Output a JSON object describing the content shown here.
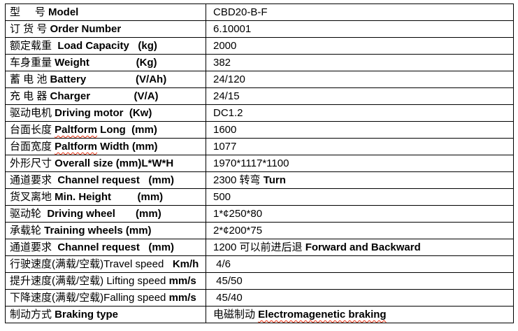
{
  "colors": {
    "border": "#000000",
    "text": "#000000",
    "background": "#ffffff",
    "spellcheck_squiggle": "#e82c0c"
  },
  "table": {
    "rows": [
      {
        "left": [
          {
            "t": "型     号 "
          },
          {
            "t": "Model",
            "b": true
          }
        ],
        "right": [
          {
            "t": "CBD20-B-F"
          }
        ]
      },
      {
        "left": [
          {
            "t": "订 货 号 "
          },
          {
            "t": "Order Number",
            "b": true
          }
        ],
        "right": [
          {
            "t": "6.10001"
          }
        ]
      },
      {
        "left": [
          {
            "t": "额定载重  "
          },
          {
            "t": "Load Capacity",
            "b": true
          },
          {
            "t": "   (kg)",
            "b": true
          }
        ],
        "right": [
          {
            "t": "2000"
          }
        ]
      },
      {
        "left": [
          {
            "t": "车身重量 "
          },
          {
            "t": "Weight",
            "b": true
          },
          {
            "t": "                (Kg)",
            "b": true
          }
        ],
        "right": [
          {
            "t": "382"
          }
        ]
      },
      {
        "left": [
          {
            "t": "蓄 电 池 "
          },
          {
            "t": "Battery",
            "b": true
          },
          {
            "t": "                 (V/Ah)",
            "b": true
          }
        ],
        "right": [
          {
            "t": "24/120"
          }
        ]
      },
      {
        "left": [
          {
            "t": "充 电 器 "
          },
          {
            "t": "Charger",
            "b": true
          },
          {
            "t": "               (V/A)",
            "b": true
          }
        ],
        "right": [
          {
            "t": "24/15"
          }
        ]
      },
      {
        "left": [
          {
            "t": "驱动电机 "
          },
          {
            "t": "Driving motor",
            "b": true
          },
          {
            "t": "  (Kw)",
            "b": true
          }
        ],
        "right": [
          {
            "t": "DC1.2"
          }
        ]
      },
      {
        "left": [
          {
            "t": "台面长度 "
          },
          {
            "t": "Paltform",
            "b": true,
            "sp": true
          },
          {
            "t": " Long",
            "b": true
          },
          {
            "t": "  (mm)",
            "b": true
          }
        ],
        "right": [
          {
            "t": "1600"
          }
        ]
      },
      {
        "left": [
          {
            "t": "台面宽度 "
          },
          {
            "t": "Paltform",
            "b": true,
            "sp": true
          },
          {
            "t": " Width",
            "b": true
          },
          {
            "t": " (mm)",
            "b": true
          }
        ],
        "right": [
          {
            "t": "1077"
          }
        ]
      },
      {
        "left": [
          {
            "t": "外形尺寸 "
          },
          {
            "t": "Overall size (mm)L*W*H",
            "b": true
          }
        ],
        "right": [
          {
            "t": "1970*1117*1100"
          }
        ]
      },
      {
        "left": [
          {
            "t": "通道要求  "
          },
          {
            "t": "Channel request",
            "b": true
          },
          {
            "t": "   (mm)",
            "b": true
          }
        ],
        "right": [
          {
            "t": "2300 转弯 "
          },
          {
            "t": "Turn",
            "b": true
          }
        ]
      },
      {
        "left": [
          {
            "t": "货叉离地 "
          },
          {
            "t": "Min. Height",
            "b": true
          },
          {
            "t": "         (mm)",
            "b": true
          }
        ],
        "right": [
          {
            "t": "500"
          }
        ]
      },
      {
        "left": [
          {
            "t": "驱动轮  "
          },
          {
            "t": "Driving wheel",
            "b": true
          },
          {
            "t": "       (mm)",
            "b": true
          }
        ],
        "right": [
          {
            "t": "1*¢250*80"
          }
        ]
      },
      {
        "left": [
          {
            "t": "承载轮 "
          },
          {
            "t": "Training wheels (mm)",
            "b": true
          }
        ],
        "right": [
          {
            "t": "2*¢200*75"
          }
        ]
      },
      {
        "left": [
          {
            "t": "通道要求  "
          },
          {
            "t": "Channel request",
            "b": true
          },
          {
            "t": "   (mm)",
            "b": true
          }
        ],
        "right": [
          {
            "t": "1200 可以前进后退 "
          },
          {
            "t": "Forward and Backward",
            "b": true
          }
        ]
      },
      {
        "left": [
          {
            "t": "行驶速度(满载/空载)Travel speed   "
          },
          {
            "t": "Km/h",
            "b": true
          }
        ],
        "right": [
          {
            "t": " 4/6"
          }
        ]
      },
      {
        "left": [
          {
            "t": "提升速度(满载/空载) Lifting speed "
          },
          {
            "t": "mm/s",
            "b": true
          }
        ],
        "right": [
          {
            "t": " 45/50"
          }
        ]
      },
      {
        "left": [
          {
            "t": "下降速度(满载/空载)Falling speed "
          },
          {
            "t": "mm/s",
            "b": true
          }
        ],
        "right": [
          {
            "t": " 45/40"
          }
        ]
      },
      {
        "left": [
          {
            "t": "制动方式 "
          },
          {
            "t": "Braking type",
            "b": true
          }
        ],
        "right": [
          {
            "t": "电磁制动 "
          },
          {
            "t": "Electromagenetic braking",
            "b": true,
            "sp": true
          }
        ]
      }
    ]
  }
}
